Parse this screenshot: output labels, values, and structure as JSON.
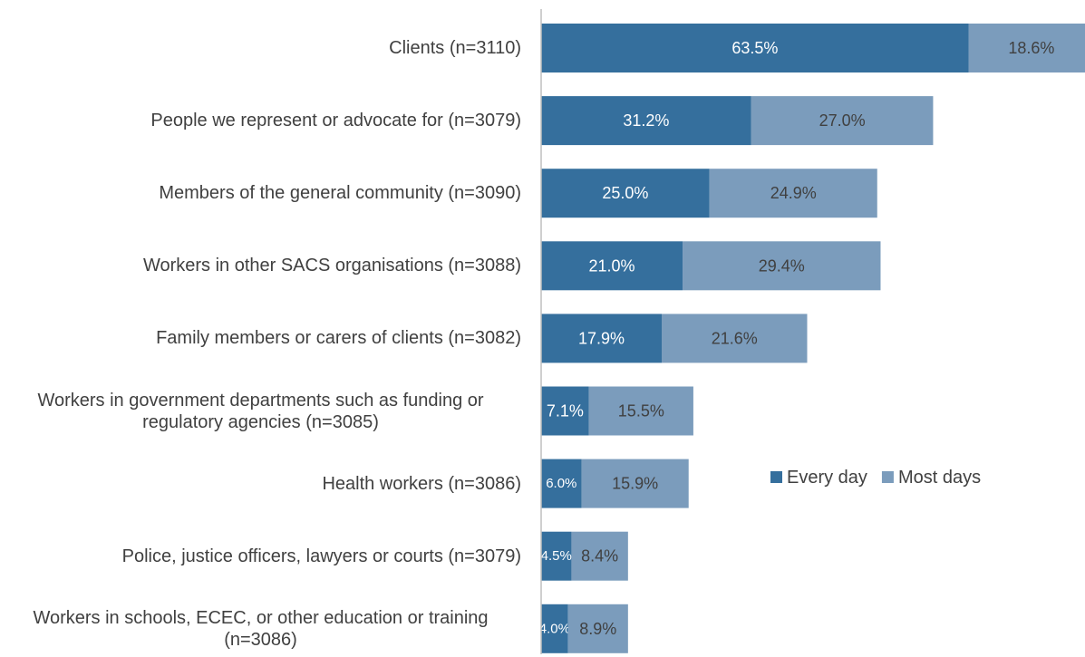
{
  "chart_data": {
    "type": "stacked-barh",
    "categories": [
      "Clients (n=3110)",
      "People we represent or advocate for (n=3079)",
      "Members of the general community (n=3090)",
      "Workers in other SACS organisations (n=3088)",
      "Family members or carers of clients (n=3082)",
      "Workers in government departments such as funding or regulatory agencies (n=3085)",
      "Health workers (n=3086)",
      "Police, justice officers, lawyers or courts (n=3079)",
      "Workers in schools, ECEC, or other education or training (n=3086)"
    ],
    "series": [
      {
        "name": "Every day",
        "color": "#356f9d",
        "label_color": "#ffffff",
        "values": [
          63.5,
          31.2,
          25.0,
          21.0,
          17.9,
          7.1,
          6.0,
          4.5,
          4.0
        ],
        "value_labels": [
          "63.5%",
          "31.2%",
          "25.0%",
          "21.0%",
          "17.9%",
          "7.1%",
          "6.0%",
          "4.5%",
          "4.0%"
        ]
      },
      {
        "name": "Most days",
        "color": "#7b9cbc",
        "label_color": "#404040",
        "values": [
          18.6,
          27.0,
          24.9,
          29.4,
          21.6,
          15.5,
          15.9,
          8.4,
          8.9
        ],
        "value_labels": [
          "18.6%",
          "27.0%",
          "24.9%",
          "29.4%",
          "21.6%",
          "15.5%",
          "15.9%",
          "8.4%",
          "8.9%"
        ]
      }
    ]
  }
}
